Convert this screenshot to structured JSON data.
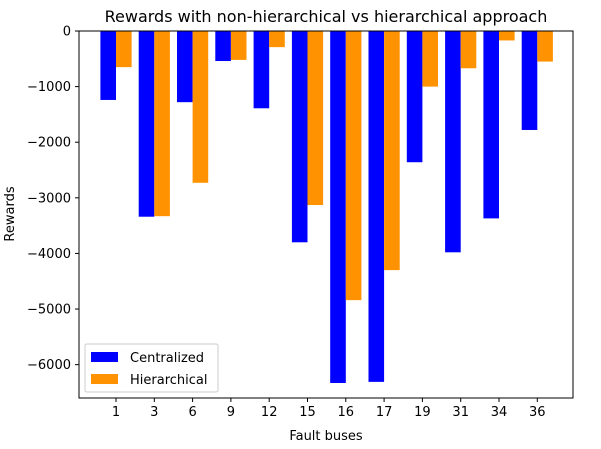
{
  "chart_data": {
    "type": "bar",
    "title": "Rewards with non-hierarchical vs hierarchical approach",
    "xlabel": "Fault buses",
    "ylabel": "Rewards",
    "categories": [
      "1",
      "3",
      "6",
      "9",
      "12",
      "15",
      "16",
      "17",
      "19",
      "31",
      "34",
      "36"
    ],
    "series": [
      {
        "name": "Centralized",
        "color": "#0000ff",
        "values": [
          -1240,
          -3340,
          -1280,
          -540,
          -1390,
          -3800,
          -6330,
          -6310,
          -2360,
          -3980,
          -3370,
          -1780
        ]
      },
      {
        "name": "Hierarchical",
        "color": "#ff9200",
        "values": [
          -650,
          -3330,
          -2730,
          -520,
          -290,
          -3130,
          -4840,
          -4300,
          -1000,
          -670,
          -170,
          -550
        ]
      }
    ],
    "ylim": [
      -6600,
      0
    ],
    "yticks": [
      0,
      -1000,
      -2000,
      -3000,
      -4000,
      -5000,
      -6000
    ],
    "ytick_labels": [
      "0",
      "−1000",
      "−2000",
      "−3000",
      "−4000",
      "−5000",
      "−6000"
    ],
    "grid": false,
    "legend_position": "lower-left"
  }
}
